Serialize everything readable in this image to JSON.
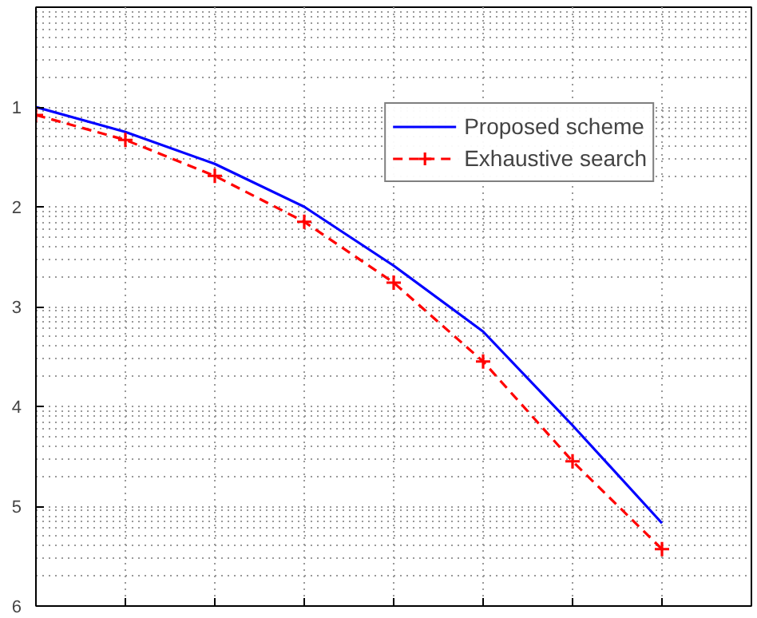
{
  "chart_data": {
    "type": "line",
    "grid": true,
    "legend": "top right",
    "tick_labels": "y",
    "categories": [
      null,
      null,
      null,
      null,
      null,
      null,
      null,
      null
    ],
    "ylim": [
      6,
      0
    ],
    "yticks": [
      1,
      2,
      3,
      4,
      5,
      6
    ],
    "series": [
      {
        "name": "Proposed scheme",
        "color": "#0000ff",
        "marker": "none",
        "line_style": "solid",
        "values": [
          1.0,
          1.25,
          1.57,
          2.0,
          2.59,
          3.25,
          4.19,
          5.17
        ]
      },
      {
        "name": "Exhaustive search",
        "color": "#ff0000",
        "marker": "cross",
        "line_style": "dashed",
        "values": [
          1.08,
          1.33,
          1.69,
          2.15,
          2.76,
          3.55,
          4.55,
          5.43
        ]
      }
    ]
  }
}
